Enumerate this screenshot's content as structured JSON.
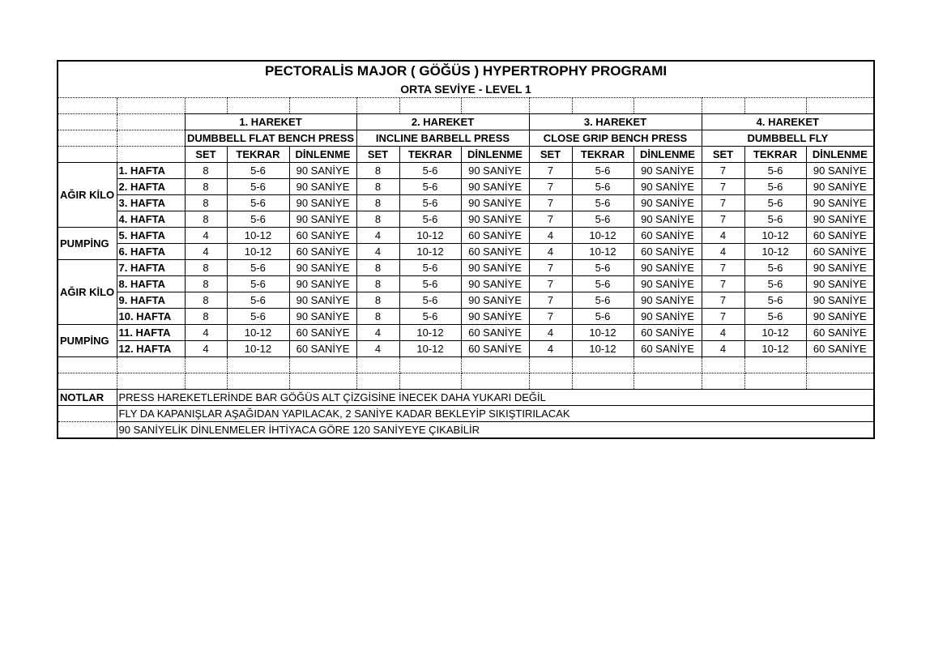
{
  "title": "PECTORALİS MAJOR ( GÖĞÜS ) HYPERTROPHY PROGRAMI",
  "subtitle": "ORTA SEVİYE - LEVEL 1",
  "exercises": [
    {
      "num": "1. HAREKET",
      "name": "DUMBBELL FLAT BENCH PRESS"
    },
    {
      "num": "2. HAREKET",
      "name": "INCLINE BARBELL PRESS"
    },
    {
      "num": "3. HAREKET",
      "name": "CLOSE GRIP BENCH PRESS"
    },
    {
      "num": "4. HAREKET",
      "name": "DUMBBELL FLY"
    }
  ],
  "headers": [
    "SET",
    "TEKRAR",
    "DİNLENME"
  ],
  "groups": [
    {
      "label": "AĞIR KİLO",
      "span": 4
    },
    {
      "label": "PUMPİNG",
      "span": 2
    },
    {
      "label": "AĞIR KİLO",
      "span": 4
    },
    {
      "label": "PUMPİNG",
      "span": 2
    }
  ],
  "rows": [
    {
      "week": "1. HAFTA",
      "cells": [
        "8",
        "5-6",
        "90 SANİYE",
        "8",
        "5-6",
        "90 SANİYE",
        "7",
        "5-6",
        "90 SANİYE",
        "7",
        "5-6",
        "90 SANİYE"
      ]
    },
    {
      "week": "2. HAFTA",
      "cells": [
        "8",
        "5-6",
        "90 SANİYE",
        "8",
        "5-6",
        "90 SANİYE",
        "7",
        "5-6",
        "90 SANİYE",
        "7",
        "5-6",
        "90 SANİYE"
      ]
    },
    {
      "week": "3. HAFTA",
      "cells": [
        "8",
        "5-6",
        "90 SANİYE",
        "8",
        "5-6",
        "90 SANİYE",
        "7",
        "5-6",
        "90 SANİYE",
        "7",
        "5-6",
        "90 SANİYE"
      ]
    },
    {
      "week": "4. HAFTA",
      "cells": [
        "8",
        "5-6",
        "90 SANİYE",
        "8",
        "5-6",
        "90 SANİYE",
        "7",
        "5-6",
        "90 SANİYE",
        "7",
        "5-6",
        "90 SANİYE"
      ]
    },
    {
      "week": "5. HAFTA",
      "cells": [
        "4",
        "10-12",
        "60 SANİYE",
        "4",
        "10-12",
        "60 SANİYE",
        "4",
        "10-12",
        "60 SANİYE",
        "4",
        "10-12",
        "60 SANİYE"
      ]
    },
    {
      "week": "6. HAFTA",
      "cells": [
        "4",
        "10-12",
        "60 SANİYE",
        "4",
        "10-12",
        "60 SANİYE",
        "4",
        "10-12",
        "60 SANİYE",
        "4",
        "10-12",
        "60 SANİYE"
      ]
    },
    {
      "week": "7. HAFTA",
      "cells": [
        "8",
        "5-6",
        "90 SANİYE",
        "8",
        "5-6",
        "90 SANİYE",
        "7",
        "5-6",
        "90 SANİYE",
        "7",
        "5-6",
        "90 SANİYE"
      ]
    },
    {
      "week": "8. HAFTA",
      "cells": [
        "8",
        "5-6",
        "90 SANİYE",
        "8",
        "5-6",
        "90 SANİYE",
        "7",
        "5-6",
        "90 SANİYE",
        "7",
        "5-6",
        "90 SANİYE"
      ]
    },
    {
      "week": "9. HAFTA",
      "cells": [
        "8",
        "5-6",
        "90 SANİYE",
        "8",
        "5-6",
        "90 SANİYE",
        "7",
        "5-6",
        "90 SANİYE",
        "7",
        "5-6",
        "90 SANİYE"
      ]
    },
    {
      "week": "10. HAFTA",
      "cells": [
        "8",
        "5-6",
        "90 SANİYE",
        "8",
        "5-6",
        "90 SANİYE",
        "7",
        "5-6",
        "90 SANİYE",
        "7",
        "5-6",
        "90 SANİYE"
      ]
    },
    {
      "week": "11. HAFTA",
      "cells": [
        "4",
        "10-12",
        "60 SANİYE",
        "4",
        "10-12",
        "60 SANİYE",
        "4",
        "10-12",
        "60 SANİYE",
        "4",
        "10-12",
        "60 SANİYE"
      ]
    },
    {
      "week": "12. HAFTA",
      "cells": [
        "4",
        "10-12",
        "60 SANİYE",
        "4",
        "10-12",
        "60 SANİYE",
        "4",
        "10-12",
        "60 SANİYE",
        "4",
        "10-12",
        "60 SANİYE"
      ]
    }
  ],
  "notes": {
    "label": "NOTLAR",
    "items": [
      "PRESS HAREKETLERİNDE BAR GÖĞÜS ALT ÇİZGİSİNE İNECEK DAHA YUKARI DEĞİL",
      "FLY DA KAPANIŞLAR AŞAĞIDAN YAPILACAK, 2 SANİYE KADAR BEKLEYİP SIKIŞTIRILACAK",
      "90 SANİYELİK DİNLENMELER İHTİYACA GÖRE 120 SANİYEYE ÇIKABİLİR"
    ]
  }
}
